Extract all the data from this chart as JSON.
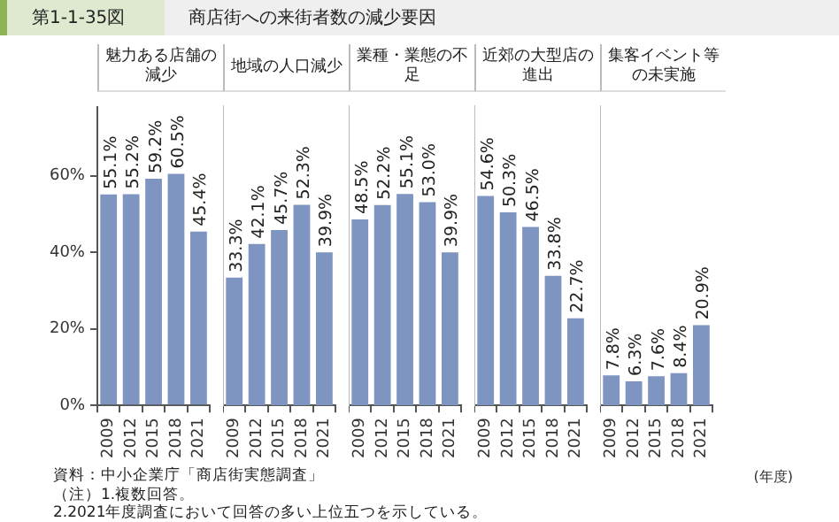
{
  "chart_data": [
    {
      "type": "other",
      "title": "第1-1-35図",
      "subtitle": "商店街への来街者数の減少要因"
    },
    {
      "type": "bar",
      "title": "魅力ある店舗の減少",
      "categories": [
        "2009",
        "2012",
        "2015",
        "2018",
        "2021"
      ],
      "values": [
        55.1,
        55.2,
        59.2,
        60.5,
        45.4
      ],
      "value_labels": [
        "55.1%",
        "55.2%",
        "59.2%",
        "60.5%",
        "45.4%"
      ],
      "color": "#7f95c1",
      "ylim": [
        0,
        78
      ],
      "yticks": [
        {
          "value": 0,
          "label": "0%"
        },
        {
          "value": 20,
          "label": "20%"
        },
        {
          "value": 40,
          "label": "40%"
        },
        {
          "value": 60,
          "label": "60%"
        }
      ]
    },
    {
      "type": "bar",
      "title": "地域の人口減少",
      "categories": [
        "2009",
        "2012",
        "2015",
        "2018",
        "2021"
      ],
      "values": [
        33.3,
        42.1,
        45.7,
        52.3,
        39.9
      ],
      "value_labels": [
        "33.3%",
        "42.1%",
        "45.7%",
        "52.3%",
        "39.9%"
      ],
      "color": "#7f95c1",
      "ylim": [
        0,
        78
      ],
      "tick_labels": "x"
    },
    {
      "type": "bar",
      "title": "業種・業態の不足",
      "categories": [
        "2009",
        "2012",
        "2015",
        "2018",
        "2021"
      ],
      "values": [
        48.5,
        52.2,
        55.1,
        53.0,
        39.9
      ],
      "value_labels": [
        "48.5%",
        "52.2%",
        "55.1%",
        "53.0%",
        "39.9%"
      ],
      "color": "#7f95c1",
      "ylim": [
        0,
        78
      ],
      "tick_labels": "x"
    },
    {
      "type": "bar",
      "title": "近郊の大型店の進出",
      "categories": [
        "2009",
        "2012",
        "2015",
        "2018",
        "2021"
      ],
      "values": [
        54.6,
        50.3,
        46.5,
        33.8,
        22.7
      ],
      "value_labels": [
        "54.6%",
        "50.3%",
        "46.5%",
        "33.8%",
        "22.7%"
      ],
      "color": "#7f95c1",
      "ylim": [
        0,
        78
      ],
      "tick_labels": "x"
    },
    {
      "type": "bar",
      "title": "集客イベント等の未実施",
      "categories": [
        "2009",
        "2012",
        "2015",
        "2018",
        "2021"
      ],
      "values": [
        7.8,
        6.3,
        7.6,
        8.4,
        20.9
      ],
      "value_labels": [
        "7.8%",
        "6.3%",
        "7.6%",
        "8.4%",
        "20.9%"
      ],
      "color": "#7f95c1",
      "ylim": [
        0,
        78
      ],
      "tick_labels": "x",
      "xlabel": "(年度)"
    },
    {
      "type": "other",
      "annotations": [
        "資料：中小企業庁「商店街実態調査」",
        "（注）1.複数回答。",
        "2.2021年度調査において回答の多い上位五つを示している。"
      ]
    }
  ]
}
